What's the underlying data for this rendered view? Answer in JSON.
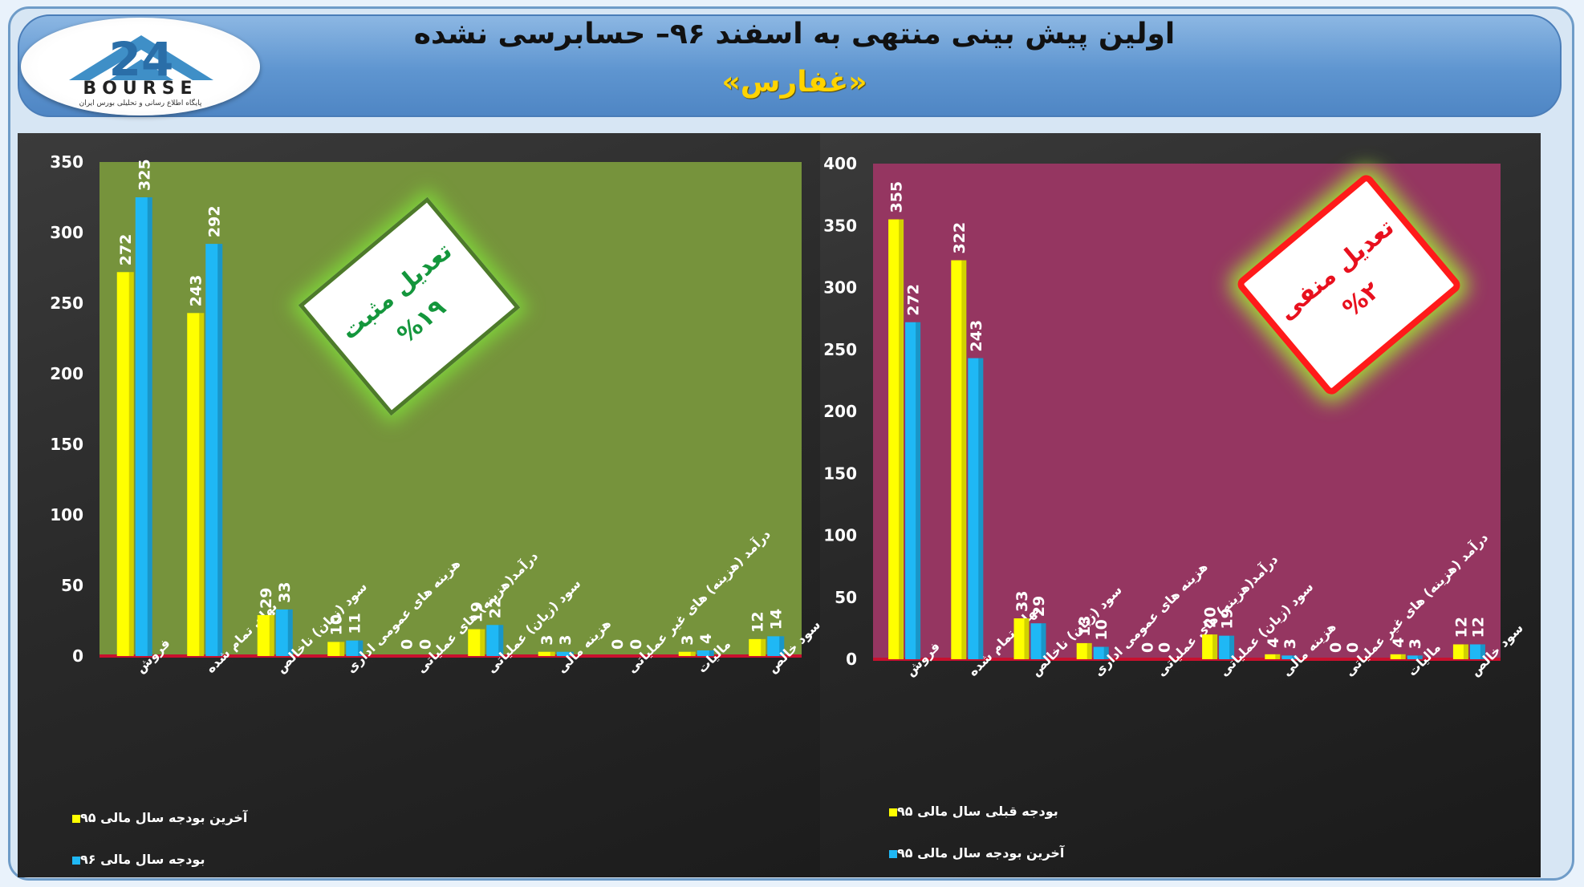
{
  "header": {
    "title": "اولین پیش بینی منتهی به اسفند ۹۶– حسابرسی نشده",
    "subtitle": "«غفارس»",
    "logo_word": "BOURSE",
    "logo_number": "24",
    "logo_tagline": "پایگاه اطلاع رسانی و تحلیلی بورس ایران"
  },
  "colors": {
    "series_yellow": "#ffff00",
    "series_blue": "#1fb8f5",
    "left_plot_bg": "#76933c",
    "right_plot_bg": "#953661",
    "badge_positive_text": "#14963c",
    "badge_negative_text": "#e8101e"
  },
  "badges": {
    "left": {
      "line1": "تعدیل مثبت",
      "line2": "%۱۹"
    },
    "right": {
      "line1": "تعدیل منفی",
      "line2": "%۲"
    }
  },
  "chart_data": [
    {
      "type": "bar",
      "categories": [
        "فروش",
        "بهای تمام شده",
        "سود (زیان) ناخالص",
        "هزینه های عمومی اداری",
        "درآمد(هزینه) های عملیاتی",
        "سود (زیان) عملیاتی",
        "هزینه مالی",
        "درآمد (هزینه) های غیر عملیاتی",
        "مالیات",
        "سود خالص"
      ],
      "series": [
        {
          "name": "آخرین بودجه سال مالی ۹۵",
          "values": [
            272,
            243,
            29,
            10,
            0,
            19,
            3,
            0,
            3,
            12
          ]
        },
        {
          "name": "بودجه سال مالی ۹۶",
          "values": [
            325,
            292,
            33,
            11,
            0,
            22,
            3,
            0,
            4,
            14
          ]
        }
      ],
      "ylim": [
        0,
        350
      ],
      "yticks": [
        0,
        50,
        100,
        150,
        200,
        250,
        300,
        350
      ],
      "legend_position": "bottom-left",
      "data_labels": true
    },
    {
      "type": "bar",
      "categories": [
        "فروش",
        "بهای تمام شده",
        "سود (زیان) ناخالص",
        "هزینه های عمومی اداری",
        "درآمد(هزینه) های عملیاتی",
        "سود (زیان) عملیاتی",
        "هزینه مالی",
        "درآمد (هزینه) های غیر عملیاتی",
        "مالیات",
        "سود خالص"
      ],
      "series": [
        {
          "name": "بودجه قبلی سال مالی ۹۵",
          "values": [
            355,
            322,
            33,
            13,
            0,
            20,
            4,
            0,
            4,
            12
          ]
        },
        {
          "name": "آخرین بودجه سال مالی ۹۵",
          "values": [
            272,
            243,
            29,
            10,
            0,
            19,
            3,
            0,
            3,
            12
          ]
        }
      ],
      "ylim": [
        0,
        400
      ],
      "yticks": [
        0,
        50,
        100,
        150,
        200,
        250,
        300,
        350,
        400
      ],
      "legend_position": "bottom-left",
      "data_labels": true
    }
  ]
}
